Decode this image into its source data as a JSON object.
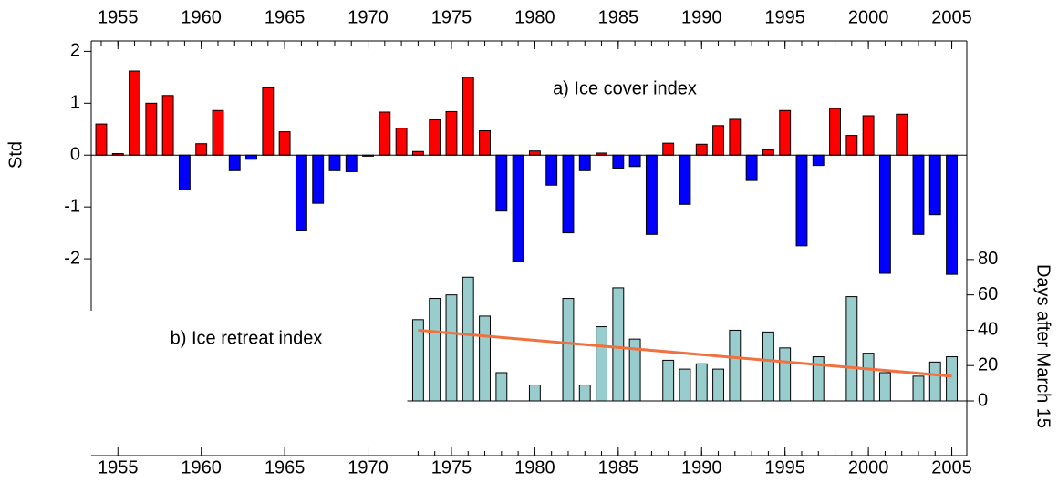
{
  "chart_data": [
    {
      "type": "bar",
      "annotation": "a) Ice cover index",
      "ylabel": "Std",
      "x": [
        1954,
        1955,
        1956,
        1957,
        1958,
        1959,
        1960,
        1961,
        1962,
        1963,
        1964,
        1965,
        1966,
        1967,
        1968,
        1969,
        1970,
        1971,
        1972,
        1973,
        1974,
        1975,
        1976,
        1977,
        1978,
        1979,
        1980,
        1981,
        1982,
        1983,
        1984,
        1985,
        1986,
        1987,
        1988,
        1989,
        1990,
        1991,
        1992,
        1993,
        1994,
        1995,
        1996,
        1997,
        1998,
        1999,
        2000,
        2001,
        2002,
        2003,
        2004,
        2005
      ],
      "values": [
        0.6,
        0.03,
        1.62,
        1.0,
        1.15,
        -0.67,
        0.22,
        0.86,
        -0.3,
        -0.08,
        1.3,
        0.45,
        -1.45,
        -0.93,
        -0.3,
        -0.32,
        -0.02,
        0.83,
        0.52,
        0.07,
        0.68,
        0.84,
        1.5,
        0.47,
        -1.08,
        -2.05,
        0.08,
        -0.58,
        -1.5,
        -0.3,
        0.04,
        -0.25,
        -0.22,
        -1.53,
        0.23,
        -0.95,
        0.21,
        0.57,
        0.69,
        -0.49,
        0.1,
        0.86,
        -1.75,
        -0.2,
        0.9,
        0.38,
        0.76,
        -2.28,
        0.79,
        -1.53,
        -1.15,
        -2.3
      ],
      "positive_color": "#ff0000",
      "negative_color": "#0000ff",
      "xlim": [
        1953.4,
        2005.9
      ],
      "xticks": [
        1955,
        1960,
        1965,
        1970,
        1975,
        1980,
        1985,
        1990,
        1995,
        2000,
        2005
      ],
      "ylim": [
        -3,
        2.2
      ],
      "yticks": [
        2,
        1,
        0,
        -1,
        -2
      ]
    },
    {
      "type": "bar",
      "annotation": "b) Ice retreat index",
      "ylabel": "Days after March 15",
      "x": [
        1973,
        1974,
        1975,
        1976,
        1977,
        1978,
        1979,
        1980,
        1981,
        1982,
        1983,
        1984,
        1985,
        1986,
        1987,
        1988,
        1989,
        1990,
        1991,
        1992,
        1993,
        1994,
        1995,
        1996,
        1997,
        1998,
        1999,
        2000,
        2001,
        2002,
        2003,
        2004,
        2005
      ],
      "values": [
        46,
        58,
        60,
        70,
        48,
        16,
        0,
        9,
        0,
        58,
        9,
        42,
        64,
        35,
        0,
        23,
        18,
        21,
        18,
        40,
        0,
        39,
        30,
        0,
        25,
        0,
        59,
        27,
        16,
        0,
        14,
        22,
        25
      ],
      "color": "#99cccc",
      "trend": {
        "x": [
          1973,
          2005
        ],
        "values": [
          40,
          14
        ],
        "color": "#f07040"
      },
      "xlim": [
        1953.4,
        2005.9
      ],
      "xticks": [
        1955,
        1960,
        1965,
        1970,
        1975,
        1980,
        1985,
        1990,
        1995,
        2000,
        2005
      ],
      "ylim": [
        0,
        82
      ],
      "yticks": [
        0,
        20,
        40,
        60,
        80
      ]
    }
  ]
}
